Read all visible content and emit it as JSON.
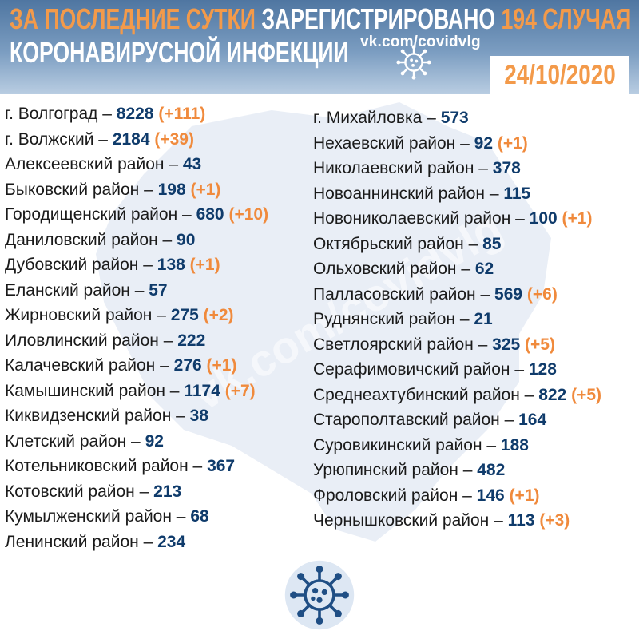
{
  "header": {
    "line1_part1": "ЗА ПОСЛЕДНИЕ СУТКИ",
    "line1_part2": "ЗАРЕГИСТРИРОВАНО",
    "line1_part3": "194 СЛУЧАЯ",
    "line2": "КОРОНАВИРУСНОЙ ИНФЕКЦИИ",
    "site": "vk.com/covidvlg",
    "date": "24/10/2020"
  },
  "watermark": "vk.com/covidvlg",
  "icons": {
    "header": "virus-icon",
    "bottom": "virus-icon"
  },
  "colors": {
    "header_bg": "#5b81ab",
    "accent_orange": "#f39a4a",
    "number_blue": "#0f3b6b",
    "map_fill": "#e9eef6"
  },
  "left_list": [
    {
      "name": "г. Волгоград",
      "count": "8228",
      "increase": "(+111)"
    },
    {
      "name": "г. Волжский",
      "count": "2184",
      "increase": "(+39)"
    },
    {
      "name": "Алексеевский район",
      "count": "43",
      "increase": ""
    },
    {
      "name": "Быковский район",
      "count": "198",
      "increase": "(+1)"
    },
    {
      "name": "Городищенский район",
      "count": "680",
      "increase": "(+10)"
    },
    {
      "name": "Даниловский район",
      "count": "90",
      "increase": ""
    },
    {
      "name": "Дубовский район",
      "count": "138",
      "increase": "(+1)"
    },
    {
      "name": "Еланский район",
      "count": "57",
      "increase": ""
    },
    {
      "name": "Жирновский район",
      "count": "275",
      "increase": "(+2)"
    },
    {
      "name": "Иловлинский район",
      "count": "222",
      "increase": ""
    },
    {
      "name": "Калачевский район",
      "count": "276",
      "increase": "(+1)"
    },
    {
      "name": "Камышинский район",
      "count": "1174",
      "increase": "(+7)"
    },
    {
      "name": "Киквидзенский район",
      "count": "38",
      "increase": ""
    },
    {
      "name": "Клетский район",
      "count": "92",
      "increase": ""
    },
    {
      "name": "Котельниковский район",
      "count": "367",
      "increase": ""
    },
    {
      "name": "Котовский район",
      "count": "213",
      "increase": ""
    },
    {
      "name": "Кумылженский район",
      "count": "68",
      "increase": ""
    },
    {
      "name": "Ленинский район",
      "count": "234",
      "increase": ""
    }
  ],
  "right_list": [
    {
      "name": "г. Михайловка",
      "count": "573",
      "increase": ""
    },
    {
      "name": "Нехаевский район",
      "count": "92",
      "increase": "(+1)"
    },
    {
      "name": "Николаевский район",
      "count": "378",
      "increase": ""
    },
    {
      "name": "Новоаннинский район",
      "count": "115",
      "increase": ""
    },
    {
      "name": "Новониколаевский район",
      "count": "100",
      "increase": "(+1)"
    },
    {
      "name": "Октябрьский район",
      "count": "85",
      "increase": ""
    },
    {
      "name": "Ольховский район",
      "count": "62",
      "increase": ""
    },
    {
      "name": "Палласовский район",
      "count": "569",
      "increase": "(+6)"
    },
    {
      "name": "Руднянский район",
      "count": "21",
      "increase": ""
    },
    {
      "name": "Светлоярский район",
      "count": "325",
      "increase": "(+5)"
    },
    {
      "name": "Серафимовичский район",
      "count": "128",
      "increase": ""
    },
    {
      "name": "Среднеахтубинский район",
      "count": "822",
      "increase": "(+5)"
    },
    {
      "name": "Старополтавский район",
      "count": "164",
      "increase": ""
    },
    {
      "name": "Суровикинский район",
      "count": "188",
      "increase": ""
    },
    {
      "name": "Урюпинский район",
      "count": "482",
      "increase": ""
    },
    {
      "name": "Фроловский район",
      "count": "146",
      "increase": "(+1)"
    },
    {
      "name": "Чернышковский район",
      "count": "113",
      "increase": "(+3)"
    }
  ]
}
